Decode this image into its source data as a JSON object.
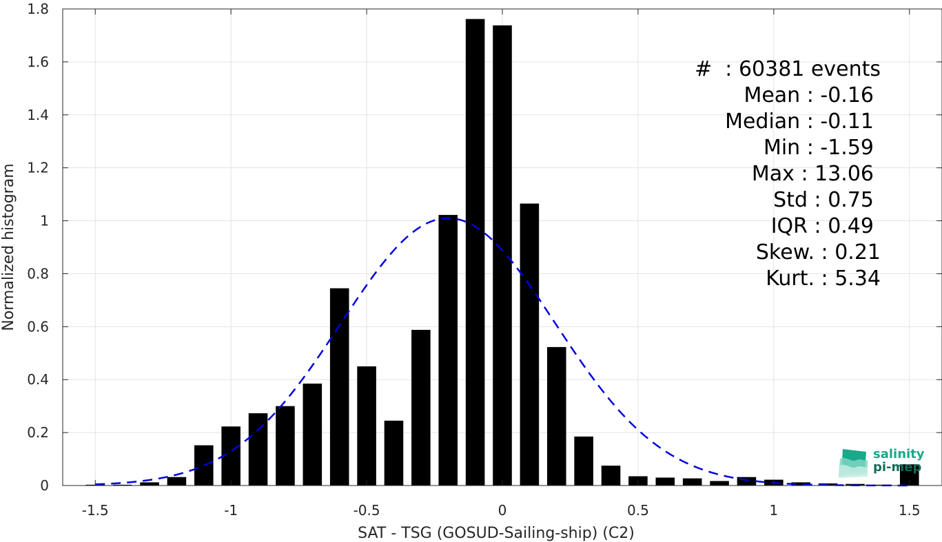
{
  "chart_data": {
    "type": "bar",
    "xlabel": "SAT - TSG (GOSUD-Sailing-ship) (C2)",
    "ylabel": "Normalized histogram",
    "xlim": [
      -1.62,
      1.62
    ],
    "ylim": [
      0,
      1.8
    ],
    "xticks": [
      -1.5,
      -1,
      -0.5,
      0,
      0.5,
      1,
      1.5
    ],
    "xtick_labels": [
      "-1.5",
      "-1",
      "-0.5",
      "0",
      "0.5",
      "1",
      "1.5"
    ],
    "yticks": [
      0,
      0.2,
      0.4,
      0.6,
      0.8,
      1,
      1.2,
      1.4,
      1.6,
      1.8
    ],
    "ytick_labels": [
      "0",
      "0.2",
      "0.4",
      "0.6",
      "0.8",
      "1",
      "1.2",
      "1.4",
      "1.6",
      "1.8"
    ],
    "grid": true,
    "bar_color": "#000000",
    "bins_x": [
      -1.5,
      -1.4,
      -1.3,
      -1.2,
      -1.1,
      -1.0,
      -0.9,
      -0.8,
      -0.7,
      -0.6,
      -0.5,
      -0.4,
      -0.3,
      -0.2,
      -0.1,
      0.0,
      0.1,
      0.2,
      0.3,
      0.4,
      0.5,
      0.6,
      0.7,
      0.8,
      0.9,
      1.0,
      1.1,
      1.2,
      1.3,
      1.4,
      1.5
    ],
    "values": [
      0.003,
      0.003,
      0.012,
      0.032,
      0.152,
      0.223,
      0.273,
      0.3,
      0.385,
      0.745,
      0.45,
      0.245,
      0.588,
      1.022,
      1.762,
      1.738,
      1.065,
      0.523,
      0.185,
      0.075,
      0.035,
      0.03,
      0.027,
      0.017,
      0.032,
      0.022,
      0.012,
      0.008,
      0.006,
      0.003,
      0.08
    ],
    "fit_curve": {
      "type": "gaussian",
      "mean": -0.2,
      "std": 0.395,
      "color": "#0000dd",
      "style": "dashed",
      "x_range": [
        -1.5,
        1.5
      ]
    },
    "annotations": [
      "#  : 60381 events",
      "Mean : -0.16",
      "Median : -0.11",
      "Min : -1.59",
      "Max : 13.06",
      "Std : 0.75",
      "IQR : 0.49",
      "Skew. : 0.21",
      "Kurt. : 5.34"
    ]
  },
  "logo": {
    "line1": "salinity",
    "line2": "pi-mep",
    "color1": "#1aa88a",
    "color2": "#146b5a"
  }
}
